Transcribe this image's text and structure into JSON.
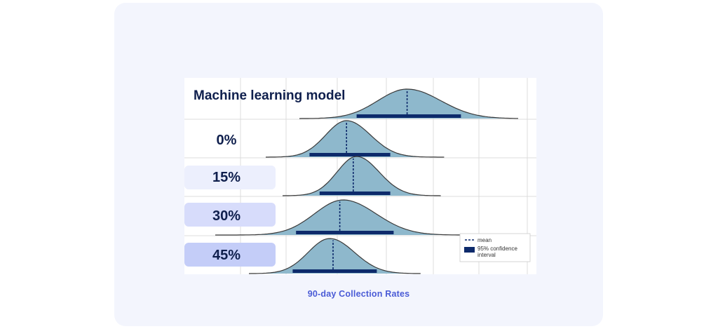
{
  "caption": "90-day Collection Rates",
  "colors": {
    "fill": "#8eb8cc",
    "outline": "#3a3a3a",
    "bar": "#0d2a6b",
    "label_text": "#0f1f4d",
    "caption": "#4a5bd6",
    "label_bg_15": "#eceffd",
    "label_bg_30": "#d7dcfb",
    "label_bg_45": "#c4cdf8"
  },
  "legend": {
    "position": "bottom-right",
    "mean_label": "mean",
    "ci_label_line1": "95% confidence",
    "ci_label_line2": "interval"
  },
  "chart_data": {
    "type": "ridgeline",
    "title": "",
    "xlabel": "",
    "grid": true,
    "series": [
      {
        "name": "Machine learning model",
        "mean": 0.62,
        "ci": [
          0.47,
          0.78
        ],
        "sd": 0.087,
        "range": [
          0.3,
          0.95
        ],
        "peak": 0.62
      },
      {
        "name": "0%",
        "mean": 0.44,
        "ci": [
          0.33,
          0.57
        ],
        "sd": 0.062,
        "range": [
          0.2,
          0.73
        ],
        "peak": 0.44
      },
      {
        "name": "15%",
        "mean": 0.46,
        "ci": [
          0.36,
          0.57
        ],
        "sd": 0.058,
        "range": [
          0.25,
          0.72
        ],
        "peak": 0.47
      },
      {
        "name": "30%",
        "mean": 0.42,
        "ci": [
          0.29,
          0.58
        ],
        "sd": 0.085,
        "range": [
          0.05,
          0.78
        ],
        "peak": 0.43
      },
      {
        "name": "45%",
        "mean": 0.4,
        "ci": [
          0.28,
          0.53
        ],
        "sd": 0.064,
        "range": [
          0.15,
          0.66
        ],
        "peak": 0.39
      }
    ]
  }
}
